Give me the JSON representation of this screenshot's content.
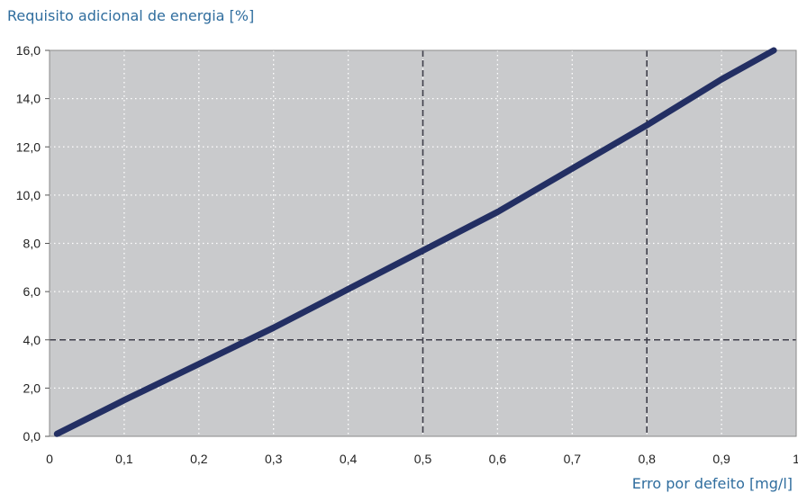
{
  "chart_data": {
    "type": "line",
    "ylabel": "Requisito adicional de energia [%]",
    "xlabel": "Erro por defeito [mg/l]",
    "xlim": [
      0,
      1
    ],
    "ylim": [
      0,
      16
    ],
    "x_ticks": [
      "0",
      "0,1",
      "0,2",
      "0,3",
      "0,4",
      "0,5",
      "0,6",
      "0,7",
      "0,8",
      "0,9",
      "1"
    ],
    "y_ticks": [
      "0,0",
      "2,0",
      "4,0",
      "6,0",
      "8,0",
      "10,0",
      "12,0",
      "14,0",
      "16,0"
    ],
    "grid": true,
    "highlight_lines": {
      "x": [
        0.5,
        0.8
      ],
      "y": [
        4
      ]
    },
    "series": [
      {
        "color": "#232f63",
        "points": [
          [
            0.01,
            0.1
          ],
          [
            0.1,
            1.5
          ],
          [
            0.2,
            3.0
          ],
          [
            0.3,
            4.5
          ],
          [
            0.4,
            6.1
          ],
          [
            0.5,
            7.7
          ],
          [
            0.6,
            9.3
          ],
          [
            0.7,
            11.1
          ],
          [
            0.8,
            12.9
          ],
          [
            0.9,
            14.8
          ],
          [
            0.97,
            16.0
          ]
        ]
      }
    ],
    "colors": {
      "plot_background": "#c9cacc",
      "label": "#2f6d9e"
    }
  }
}
